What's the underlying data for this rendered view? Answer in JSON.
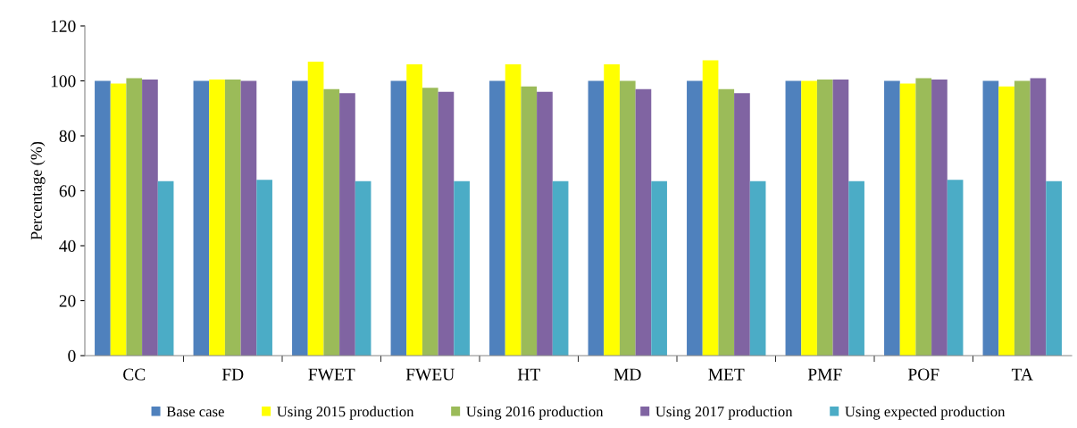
{
  "chart_data": {
    "type": "bar",
    "ylabel": "Percentage (%)",
    "categories": [
      "CC",
      "FD",
      "FWET",
      "FWEU",
      "HT",
      "MD",
      "MET",
      "PMF",
      "POF",
      "TA"
    ],
    "series": [
      {
        "name": "Base case",
        "color": "#4f81bd",
        "values": [
          100,
          100,
          100,
          100,
          100,
          100,
          100,
          100,
          100,
          100
        ]
      },
      {
        "name": "Using 2015 production",
        "color": "#ffff00",
        "values": [
          99,
          100.5,
          107,
          106,
          106,
          106,
          107.5,
          100,
          99,
          98
        ]
      },
      {
        "name": "Using 2016 production",
        "color": "#9bbb59",
        "values": [
          101,
          100.5,
          97,
          97.5,
          98,
          100,
          97,
          100.5,
          101,
          100
        ]
      },
      {
        "name": "Using 2017 production",
        "color": "#8064a2",
        "values": [
          100.5,
          100,
          95.5,
          96,
          96,
          97,
          95.5,
          100.5,
          100.5,
          101
        ]
      },
      {
        "name": "Using expected production",
        "color": "#4bacc6",
        "values": [
          63.5,
          64,
          63.5,
          63.5,
          63.5,
          63.5,
          63.5,
          63.5,
          64,
          63.5
        ]
      }
    ],
    "ylim": [
      0,
      120
    ],
    "yticks": [
      0,
      20,
      40,
      60,
      80,
      100,
      120
    ],
    "grid": false,
    "legend": "bottom"
  }
}
